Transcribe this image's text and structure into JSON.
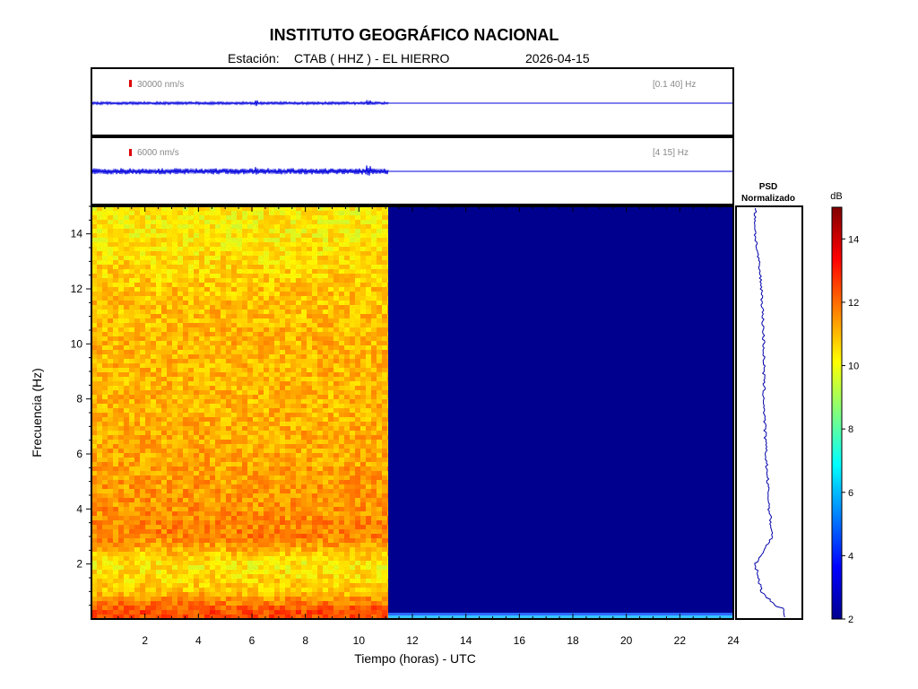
{
  "header": {
    "title": "INSTITUTO GEOGRÁFICO NACIONAL",
    "station_label": "Estación:",
    "station": "CTAB ( HHZ ) - EL HIERRO",
    "date": "2026-04-15"
  },
  "traces": [
    {
      "scale_label": "30000 nm/s",
      "band_label": "[0.1 40] Hz",
      "data_end_hour": 11.1
    },
    {
      "scale_label": "6000 nm/s",
      "band_label": "[4 15] Hz",
      "data_end_hour": 11.1
    }
  ],
  "colors": {
    "trace": "#0000dd",
    "scale_mark": "#dd0000",
    "no_data": "#00008f"
  },
  "psd": {
    "label_line1": "PSD",
    "label_line2": "Normalizado"
  },
  "colorbar": {
    "unit": "dB",
    "min": 2,
    "max": 15,
    "ticks": [
      "2",
      "4",
      "6",
      "8",
      "10",
      "12",
      "14"
    ]
  },
  "chart_data": {
    "type": "heatmap",
    "xlabel": "Tiempo (horas) - UTC",
    "ylabel": "Frecuencia  (Hz)",
    "xlim": [
      0,
      24
    ],
    "ylim": [
      0,
      15
    ],
    "x_ticks": [
      "2",
      "4",
      "6",
      "8",
      "10",
      "12",
      "14",
      "16",
      "18",
      "20",
      "22",
      "24"
    ],
    "y_ticks": [
      "2",
      "4",
      "6",
      "8",
      "10",
      "12",
      "14"
    ],
    "data_end_hour": 11.1,
    "band_levels_db": [
      {
        "freq_hz": 0.3,
        "db": 12.5
      },
      {
        "freq_hz": 1.0,
        "db": 10.8
      },
      {
        "freq_hz": 2.0,
        "db": 10.2
      },
      {
        "freq_hz": 3.0,
        "db": 11.8
      },
      {
        "freq_hz": 4.0,
        "db": 11.5
      },
      {
        "freq_hz": 6.0,
        "db": 11.2
      },
      {
        "freq_hz": 8.0,
        "db": 11.0
      },
      {
        "freq_hz": 10.0,
        "db": 11.0
      },
      {
        "freq_hz": 12.0,
        "db": 10.8
      },
      {
        "freq_hz": 14.0,
        "db": 10.2
      }
    ],
    "no_data_level_db": 2.5
  }
}
